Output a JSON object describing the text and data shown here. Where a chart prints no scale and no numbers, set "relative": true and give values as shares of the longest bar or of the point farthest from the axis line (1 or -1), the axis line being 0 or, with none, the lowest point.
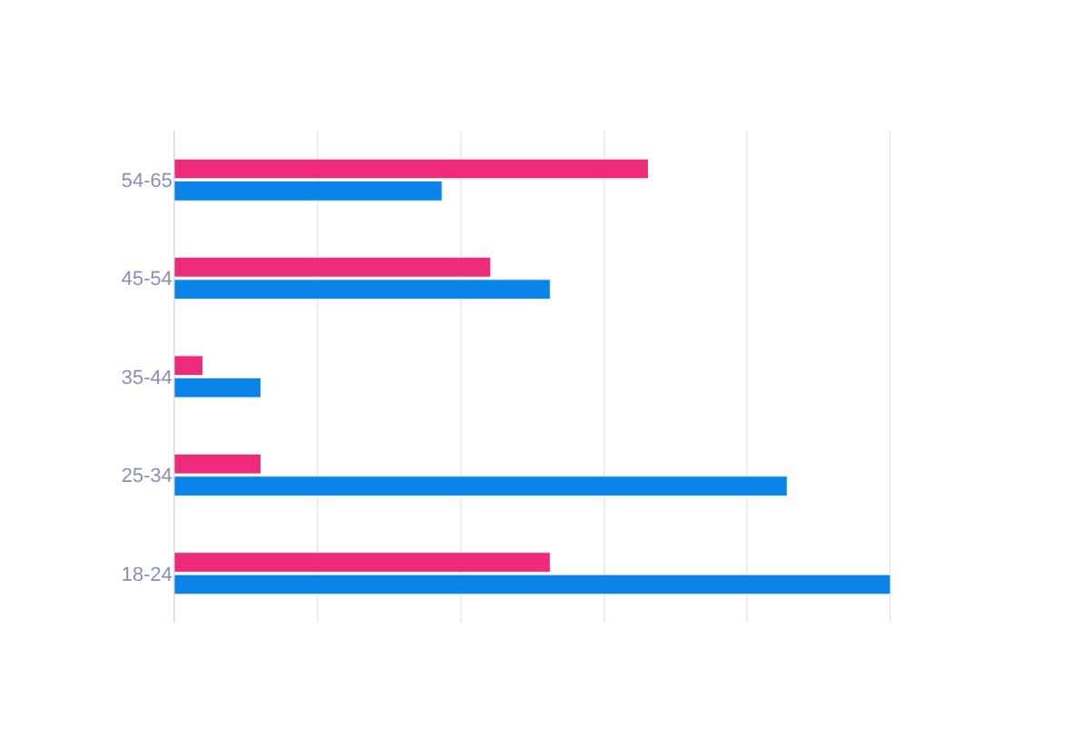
{
  "chart_data": {
    "type": "bar",
    "orientation": "horizontal",
    "relative": true,
    "grid": "x",
    "legend": false,
    "categories": [
      "54-65",
      "45-54",
      "35-44",
      "25-34",
      "18-24"
    ],
    "series": [
      {
        "color": "#ee2a7b",
        "values": [
          0.662,
          0.442,
          0.04,
          0.121,
          0.525
        ]
      },
      {
        "color": "#0a84e8",
        "values": [
          0.374,
          0.525,
          0.121,
          0.856,
          1
        ]
      }
    ]
  }
}
